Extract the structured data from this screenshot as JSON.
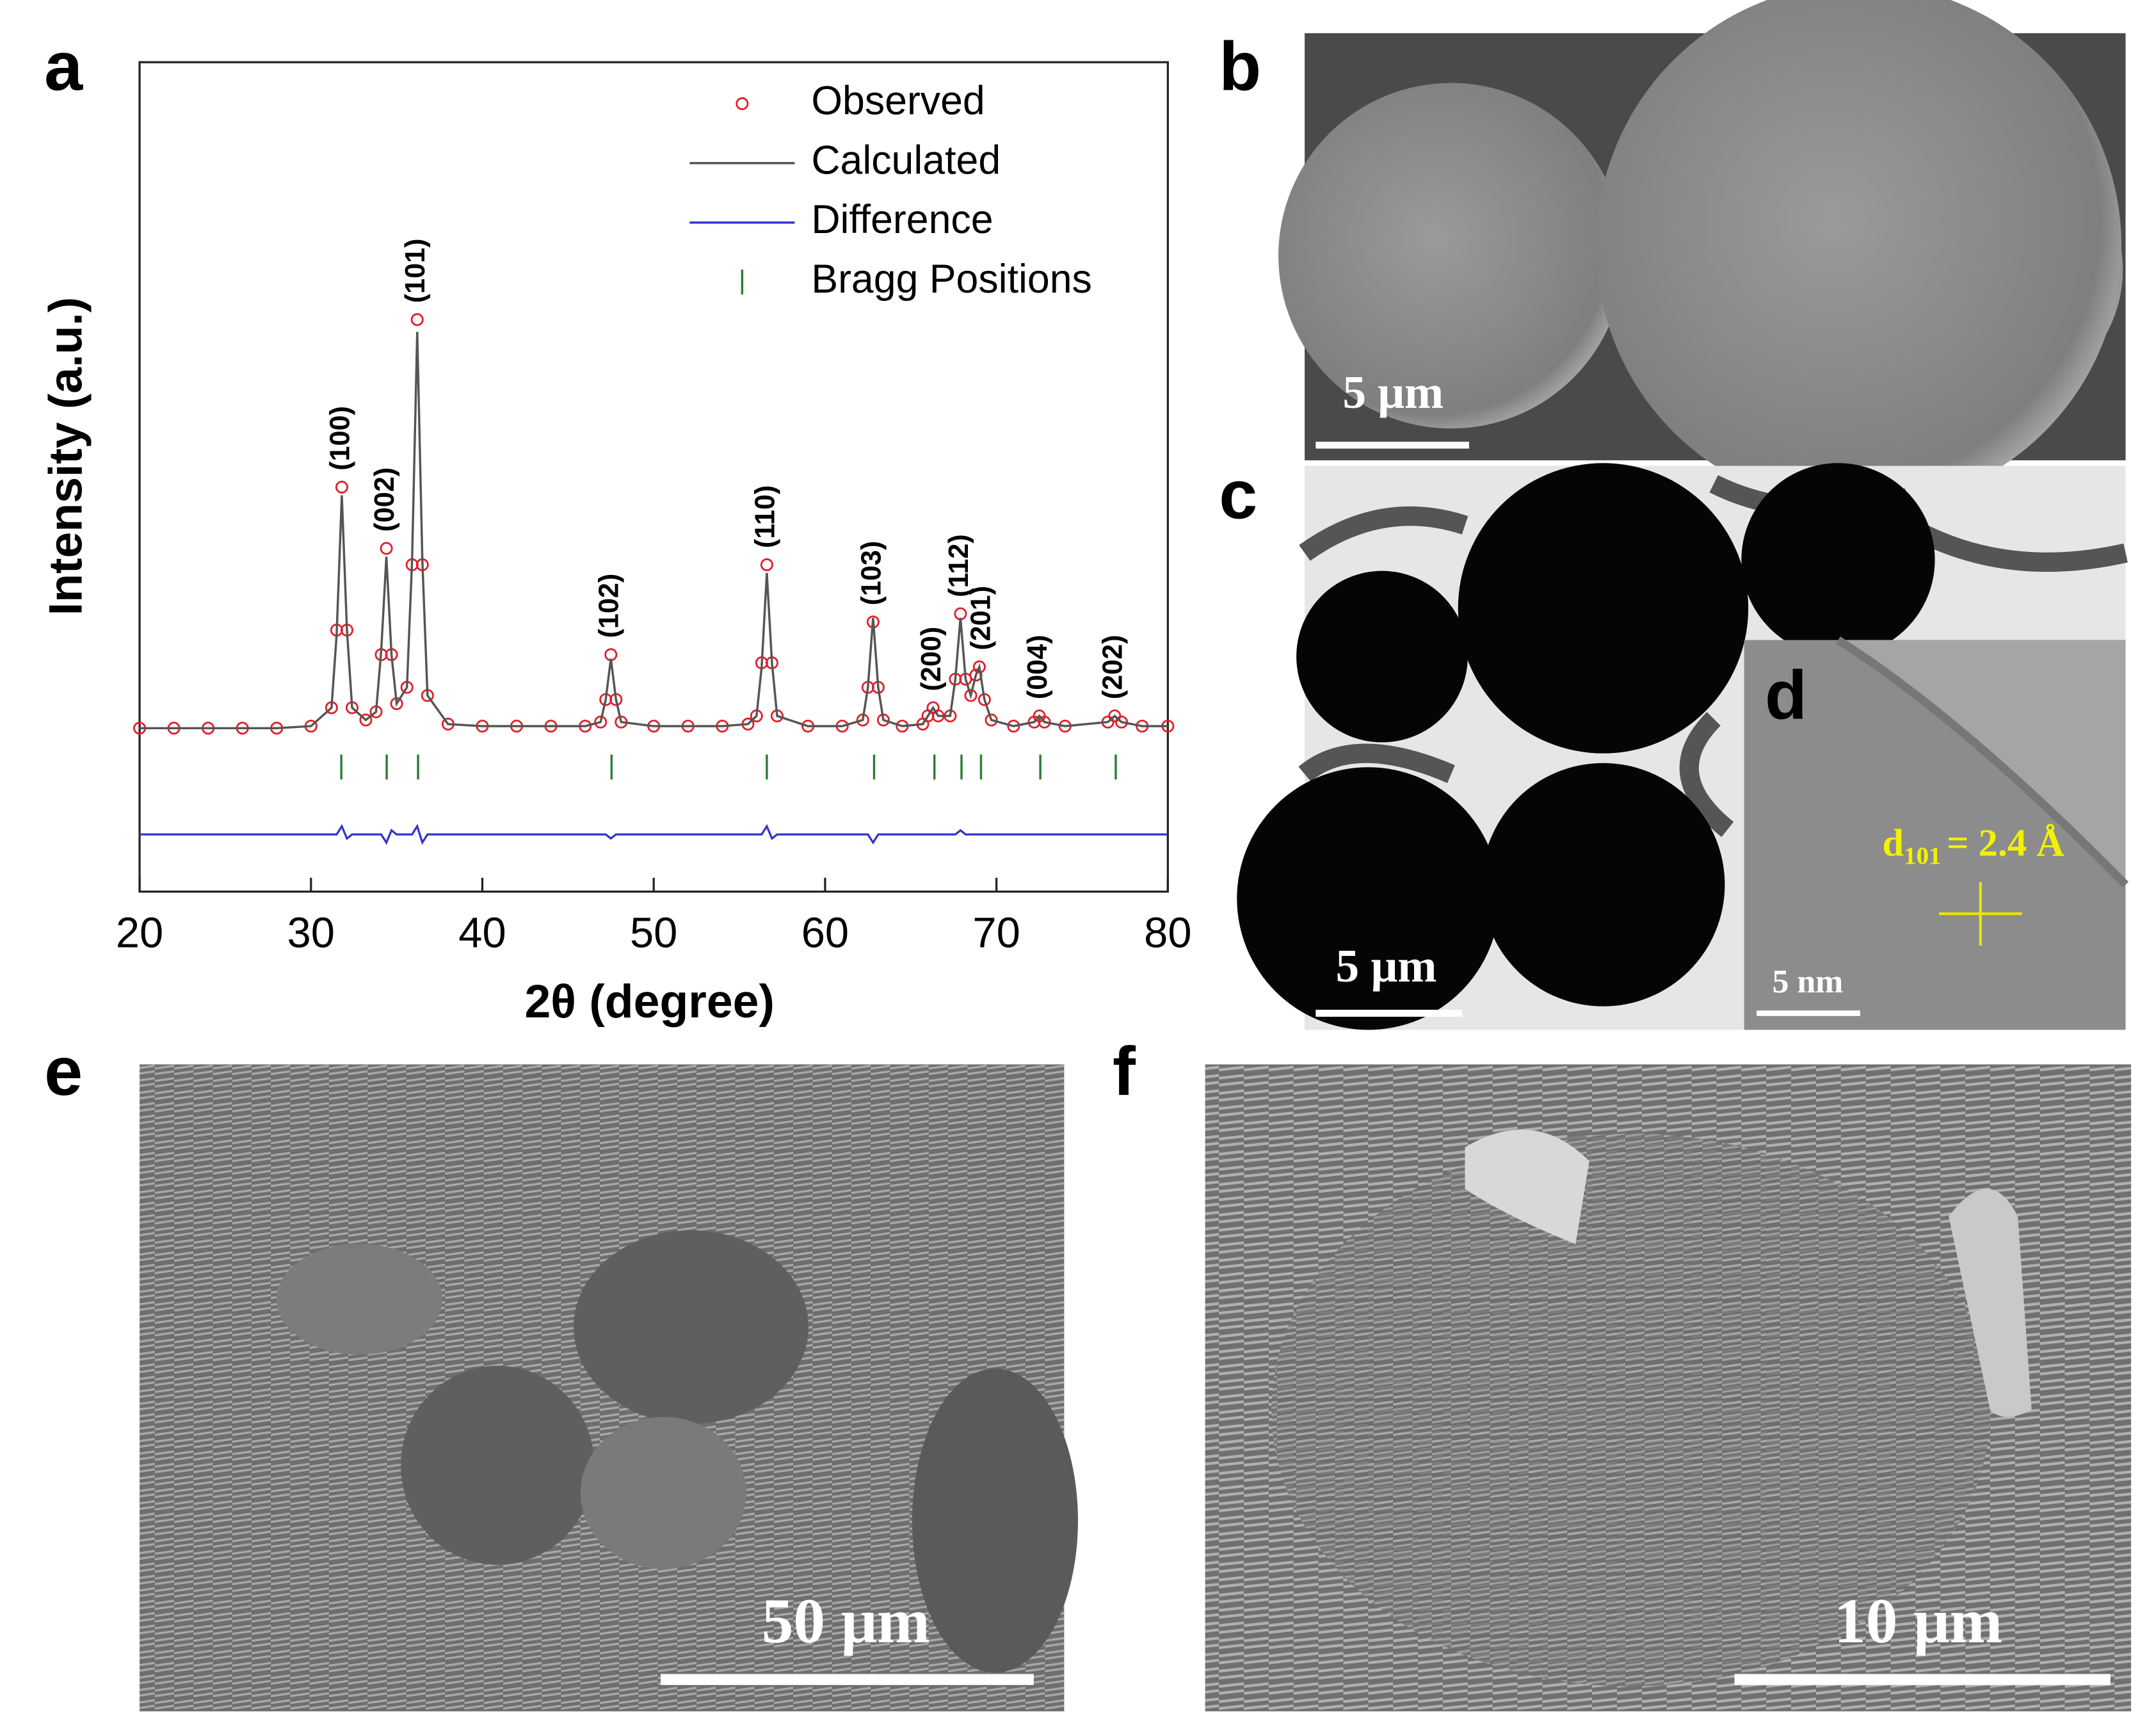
{
  "chart_data": {
    "type": "line",
    "xlabel": "2θ (degree)",
    "ylabel": "Intensity (a.u.)",
    "xlim": [
      20,
      80
    ],
    "ylim": [
      -40,
      163
    ],
    "xticks": [
      20,
      30,
      40,
      50,
      60,
      70,
      80
    ],
    "legend": "upper right",
    "x": [
      20,
      22,
      24,
      26,
      28,
      30,
      31.2,
      31.5,
      31.8,
      32.1,
      32.4,
      33.2,
      33.8,
      34.1,
      34.4,
      34.7,
      35.0,
      35.6,
      35.9,
      36.2,
      36.5,
      36.8,
      38,
      40,
      42,
      44,
      46,
      46.9,
      47.2,
      47.5,
      47.8,
      48.1,
      50,
      52,
      54,
      55.5,
      56.0,
      56.3,
      56.6,
      56.9,
      57.2,
      59,
      61,
      62.2,
      62.5,
      62.8,
      63.1,
      63.4,
      64.5,
      65.7,
      66.0,
      66.3,
      66.6,
      67.3,
      67.6,
      67.9,
      68.2,
      68.5,
      68.8,
      69.0,
      69.3,
      69.7,
      71,
      72.2,
      72.5,
      72.8,
      74,
      76.5,
      76.9,
      77.3,
      78.5,
      80
    ],
    "series": [
      {
        "name": "Observed",
        "color": "#e0202a",
        "mode": "markers",
        "values": [
          0,
          0,
          0,
          0,
          0,
          0.5,
          5,
          24,
          59,
          24,
          5,
          2,
          4,
          18,
          44,
          18,
          6,
          10,
          40,
          100,
          40,
          8,
          1,
          0.5,
          0.5,
          0.5,
          0.5,
          1.5,
          7,
          18,
          7,
          1.5,
          0.5,
          0.5,
          0.5,
          1,
          3,
          16,
          40,
          16,
          3,
          0.5,
          0.5,
          2,
          10,
          26,
          10,
          2,
          0.5,
          1,
          3,
          5,
          3,
          3,
          12,
          28,
          12,
          8,
          13,
          15,
          7,
          2,
          0.5,
          1.5,
          3,
          1.5,
          0.5,
          1.5,
          3,
          1.5,
          0.5,
          0.5
        ]
      },
      {
        "name": "Calculated",
        "color": "#555555",
        "mode": "line",
        "values": [
          0,
          0,
          0,
          0,
          0,
          0.5,
          5,
          23,
          57,
          24,
          5,
          2,
          4,
          19,
          42,
          18,
          6,
          10,
          41,
          97,
          41,
          8,
          1,
          0.5,
          0.5,
          0.5,
          0.5,
          1.5,
          7,
          17,
          7,
          1.5,
          0.5,
          0.5,
          0.5,
          1,
          3,
          15,
          38,
          16,
          3,
          0.5,
          0.5,
          2,
          10,
          27,
          10,
          2,
          0.5,
          1,
          3,
          5,
          3,
          3,
          12,
          27,
          12,
          8,
          13,
          15,
          7,
          2,
          0.5,
          1.5,
          3,
          1.5,
          0.5,
          1.5,
          3,
          1.5,
          0.5,
          0.5
        ]
      },
      {
        "name": "Difference",
        "color": "#3333cc",
        "mode": "line",
        "values": [
          -26,
          -26,
          -26,
          -26,
          -26,
          -26,
          -26,
          -26,
          -24,
          -27,
          -26,
          -26,
          -26,
          -26,
          -28,
          -25,
          -26,
          -26,
          -26,
          -24,
          -28,
          -26,
          -26,
          -26,
          -26,
          -26,
          -26,
          -26,
          -26,
          -27,
          -26,
          -26,
          -26,
          -26,
          -26,
          -26,
          -26,
          -26,
          -24,
          -27,
          -26,
          -26,
          -26,
          -26,
          -26,
          -28,
          -26,
          -26,
          -26,
          -26,
          -26,
          -26,
          -26,
          -26,
          -26,
          -25,
          -26,
          -26,
          -26,
          -26,
          -26,
          -26,
          -26,
          -26,
          -26,
          -26,
          -26,
          -26,
          -26,
          -26,
          -26,
          -26
        ]
      },
      {
        "name": "Bragg Positions",
        "color": "#2e7d32",
        "mode": "ticks",
        "x": [
          31.77,
          34.42,
          36.25,
          47.54,
          56.6,
          62.86,
          66.38,
          67.96,
          69.1,
          72.56,
          76.96
        ],
        "values": [
          -9.5,
          -9.5,
          -9.5,
          -9.5,
          -9.5,
          -9.5,
          -9.5,
          -9.5,
          -9.5,
          -9.5,
          -9.5
        ]
      }
    ],
    "annotations": [
      {
        "text": "(100)",
        "x": 31.8,
        "y": 59
      },
      {
        "text": "(002)",
        "x": 34.4,
        "y": 44
      },
      {
        "text": "(101)",
        "x": 36.2,
        "y": 100
      },
      {
        "text": "(102)",
        "x": 47.5,
        "y": 18
      },
      {
        "text": "(110)",
        "x": 56.6,
        "y": 40
      },
      {
        "text": "(103)",
        "x": 62.8,
        "y": 26
      },
      {
        "text": "(200)",
        "x": 66.3,
        "y": 5
      },
      {
        "text": "(112)",
        "x": 67.9,
        "y": 28
      },
      {
        "text": "(201)",
        "x": 69.2,
        "y": 15
      },
      {
        "text": "(004)",
        "x": 72.5,
        "y": 3
      },
      {
        "text": "(202)",
        "x": 76.9,
        "y": 3
      }
    ]
  },
  "panel_labels": [
    "a",
    "b",
    "c",
    "d",
    "e",
    "f"
  ],
  "scale_bars": {
    "b": "5 μm",
    "c": "5 μm",
    "d": "5 nm",
    "e": "50 μm",
    "f": "10 μm"
  },
  "d_spacing": {
    "symbol": "d",
    "subscript": "101",
    "text": "= 2.4 Å"
  }
}
